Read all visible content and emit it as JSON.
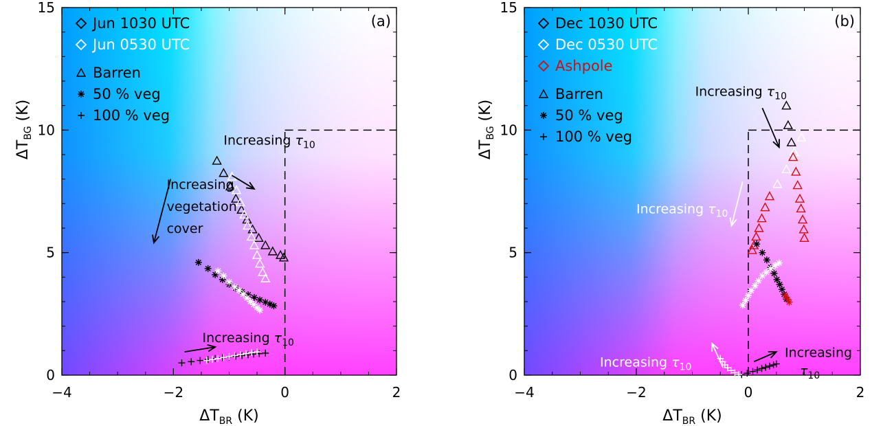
{
  "chart_data": [
    {
      "type": "scatter",
      "panel_label": "(a)",
      "xlabel": {
        "main": "ΔT",
        "sub": "BR",
        "unit": " (K)"
      },
      "ylabel": {
        "main": "ΔT",
        "sub": "BG",
        "unit": " (K)"
      },
      "xlim": [
        -4,
        2
      ],
      "ylim": [
        0,
        15
      ],
      "xticks": [
        "−4",
        "−2",
        "0",
        "2"
      ],
      "yticks": [
        "0",
        "5",
        "10",
        "15"
      ],
      "threshold": {
        "x": 0,
        "y": 10
      },
      "legend": {
        "placement": "top-left",
        "entries": [
          {
            "marker": "diamond",
            "color": "#000000",
            "label": "Jun 1030 UTC"
          },
          {
            "marker": "diamond",
            "color": "#ffffff",
            "label": "Jun 0530 UTC"
          },
          {
            "marker": "gap"
          },
          {
            "marker": "triangle",
            "color": "#000000",
            "label": "Barren"
          },
          {
            "marker": "asterisk",
            "color": "#000000",
            "label": "50 % veg"
          },
          {
            "marker": "plus",
            "color": "#000000",
            "label": "100 % veg"
          }
        ]
      },
      "annotations": [
        {
          "text": "Increasing ",
          "tau": "τ",
          "sub": "10",
          "x": -1.1,
          "y": 9.4,
          "color": "#000000",
          "arrow": [
            -0.95,
            8.15,
            -0.55,
            7.6
          ]
        },
        {
          "text": "Increasing",
          "x": -2.12,
          "y": 7.6,
          "color": "#000000"
        },
        {
          "text": "vegetation",
          "x": -2.12,
          "y": 6.7,
          "color": "#000000"
        },
        {
          "text": "cover",
          "x": -2.12,
          "y": 5.8,
          "color": "#000000",
          "arrow": [
            -2.05,
            8.0,
            -2.35,
            5.4
          ]
        },
        {
          "text": "Increasing ",
          "tau": "τ",
          "sub": "10",
          "x": -1.48,
          "y": 1.35,
          "color": "#000000",
          "arrow": [
            -1.8,
            0.95,
            -1.25,
            1.15
          ]
        }
      ],
      "series": [
        {
          "name": "Barren",
          "time": "Jun 1030 UTC",
          "marker": "triangle",
          "color": "#000000",
          "x": [
            -1.22,
            -1.1,
            -0.98,
            -0.88,
            -0.78,
            -0.68,
            -0.58,
            -0.47,
            -0.35,
            -0.22,
            -0.08,
            -0.02
          ],
          "y": [
            8.75,
            8.25,
            7.7,
            7.2,
            6.75,
            6.35,
            5.95,
            5.6,
            5.3,
            5.05,
            4.9,
            4.8
          ]
        },
        {
          "name": "Barren",
          "time": "Jun 0530 UTC",
          "marker": "triangle",
          "color": "#ffffff",
          "x": [
            -0.95,
            -0.87,
            -0.8,
            -0.73,
            -0.67,
            -0.6,
            -0.55,
            -0.5,
            -0.45,
            -0.4,
            -0.35
          ],
          "y": [
            8.1,
            7.55,
            7.05,
            6.55,
            6.1,
            5.65,
            5.3,
            4.9,
            4.55,
            4.2,
            3.95
          ]
        },
        {
          "name": "50 % veg",
          "time": "Jun 1030 UTC",
          "marker": "asterisk",
          "color": "#000000",
          "x": [
            -1.55,
            -1.38,
            -1.25,
            -1.12,
            -1.0,
            -0.88,
            -0.77,
            -0.66,
            -0.55,
            -0.45,
            -0.35,
            -0.27,
            -0.2
          ],
          "y": [
            4.6,
            4.35,
            4.1,
            3.9,
            3.7,
            3.55,
            3.4,
            3.28,
            3.17,
            3.07,
            2.98,
            2.9,
            2.83
          ]
        },
        {
          "name": "50 % veg",
          "time": "Jun 0530 UTC",
          "marker": "asterisk",
          "color": "#ffffff",
          "x": [
            -1.2,
            -1.1,
            -1.0,
            -0.9,
            -0.82,
            -0.75,
            -0.68,
            -0.62,
            -0.56,
            -0.5,
            -0.45
          ],
          "y": [
            4.25,
            4.05,
            3.8,
            3.6,
            3.45,
            3.3,
            3.15,
            3.0,
            2.88,
            2.75,
            2.65
          ]
        },
        {
          "name": "100 % veg",
          "time": "Jun 1030 UTC",
          "marker": "plus",
          "color": "#000000",
          "x": [
            -1.85,
            -1.68,
            -1.52,
            -1.38,
            -1.25,
            -1.12,
            -1.0,
            -0.88,
            -0.77,
            -0.66,
            -0.56,
            -0.46,
            -0.35
          ],
          "y": [
            0.5,
            0.55,
            0.6,
            0.64,
            0.68,
            0.71,
            0.74,
            0.77,
            0.8,
            0.83,
            0.86,
            0.88,
            0.9
          ]
        },
        {
          "name": "100 % veg",
          "time": "Jun 0530 UTC",
          "marker": "plus",
          "color": "#ffffff",
          "x": [
            -1.4,
            -1.3,
            -1.2,
            -1.1,
            -1.0,
            -0.9,
            -0.8,
            -0.7,
            -0.6,
            -0.5
          ],
          "y": [
            0.6,
            0.64,
            0.68,
            0.72,
            0.76,
            0.8,
            0.84,
            0.88,
            0.92,
            0.95
          ]
        }
      ]
    },
    {
      "type": "scatter",
      "panel_label": "(b)",
      "xlabel": {
        "main": "ΔT",
        "sub": "BR",
        "unit": " (K)"
      },
      "ylabel": {
        "main": "ΔT",
        "sub": "BG",
        "unit": " (K)"
      },
      "xlim": [
        -4,
        2
      ],
      "ylim": [
        0,
        15
      ],
      "xticks": [
        "−4",
        "−2",
        "0",
        "2"
      ],
      "yticks": [
        "0",
        "5",
        "10",
        "15"
      ],
      "threshold": {
        "x": 0,
        "y": 10
      },
      "legend": {
        "placement": "top-left",
        "entries": [
          {
            "marker": "diamond",
            "color": "#000000",
            "label": "Dec 1030 UTC"
          },
          {
            "marker": "diamond",
            "color": "#ffffff",
            "label": "Dec 0530 UTC"
          },
          {
            "marker": "diamond",
            "color": "#cc1010",
            "label": "Ashpole"
          },
          {
            "marker": "gap"
          },
          {
            "marker": "triangle",
            "color": "#000000",
            "label": "Barren"
          },
          {
            "marker": "asterisk",
            "color": "#000000",
            "label": "50 % veg"
          },
          {
            "marker": "plus",
            "color": "#000000",
            "label": "100 % veg"
          }
        ]
      },
      "annotations": [
        {
          "text": "Increasing ",
          "tau": "τ",
          "sub": "10",
          "x": -0.95,
          "y": 11.4,
          "color": "#000000",
          "arrow": [
            0.25,
            10.9,
            0.55,
            9.3
          ]
        },
        {
          "text": "Increasing ",
          "tau": "τ",
          "sub": "10",
          "x": -2.0,
          "y": 6.6,
          "color": "#ffffff",
          "arrow": [
            -0.1,
            7.9,
            -0.3,
            6.1
          ]
        },
        {
          "text": "Increasing ",
          "tau": "τ",
          "sub": "10",
          "x": -2.65,
          "y": 0.35,
          "color": "#ffffff",
          "arrow": [
            -0.45,
            0.3,
            -0.65,
            1.3
          ]
        },
        {
          "text": "Increasing",
          "x": 0.65,
          "y": 0.75,
          "color": "#000000",
          "arrow": [
            0.1,
            0.55,
            0.5,
            0.95
          ]
        },
        {
          "text": "",
          "tau": "τ",
          "sub": "10",
          "x": 0.92,
          "y": 0.0,
          "color": "#000000"
        }
      ],
      "series": [
        {
          "name": "Barren",
          "time": "Dec 1030 UTC",
          "marker": "triangle",
          "color": "#000000",
          "x": [
            0.68,
            0.71,
            0.77
          ],
          "y": [
            11.0,
            10.2,
            9.5
          ]
        },
        {
          "name": "Barren",
          "time": "Dec 0530 UTC",
          "marker": "triangle",
          "color": "#ffffff",
          "x": [
            0.95,
            0.82,
            0.68,
            0.52
          ],
          "y": [
            9.7,
            9.1,
            8.4,
            7.8
          ]
        },
        {
          "name": "Barren",
          "time": "Ashpole",
          "marker": "triangle",
          "color": "#cc1010",
          "x": [
            0.8,
            0.85,
            0.88,
            0.92,
            0.94,
            0.97,
            0.99,
            1.0,
            0.38,
            0.3,
            0.24,
            0.19,
            0.14,
            0.1,
            0.07
          ],
          "y": [
            8.9,
            8.3,
            7.75,
            7.2,
            6.8,
            6.35,
            5.95,
            5.6,
            7.3,
            6.85,
            6.4,
            6.0,
            5.65,
            5.3,
            5.1
          ]
        },
        {
          "name": "50 % veg",
          "time": "Dec 1030 UTC",
          "marker": "asterisk",
          "color": "#000000",
          "x": [
            0.15,
            0.25,
            0.33,
            0.4,
            0.46,
            0.51,
            0.56,
            0.6,
            0.64,
            0.68
          ],
          "y": [
            5.35,
            5.0,
            4.7,
            4.4,
            4.15,
            3.9,
            3.7,
            3.5,
            3.3,
            3.1
          ]
        },
        {
          "name": "50 % veg",
          "time": "Dec 0530 UTC",
          "marker": "asterisk",
          "color": "#ffffff",
          "x": [
            -0.1,
            -0.05,
            0.0,
            0.05,
            0.12,
            0.18,
            0.25,
            0.32,
            0.4,
            0.48,
            0.55
          ],
          "y": [
            2.85,
            3.05,
            3.25,
            3.45,
            3.65,
            3.85,
            4.05,
            4.2,
            4.35,
            4.48,
            4.58
          ]
        },
        {
          "name": "50 % veg",
          "time": "Ashpole",
          "marker": "asterisk",
          "color": "#cc1010",
          "x": [
            0.66,
            0.7,
            0.73
          ],
          "y": [
            3.25,
            3.1,
            2.98
          ]
        },
        {
          "name": "100 % veg",
          "time": "Dec 1030 UTC",
          "marker": "plus",
          "color": "#000000",
          "x": [
            -0.12,
            -0.02,
            0.08,
            0.16,
            0.24,
            0.31,
            0.38,
            0.45,
            0.5
          ],
          "y": [
            0.02,
            0.08,
            0.15,
            0.21,
            0.27,
            0.32,
            0.37,
            0.42,
            0.46
          ]
        },
        {
          "name": "100 % veg",
          "time": "Dec 0530 UTC",
          "marker": "plus",
          "color": "#ffffff",
          "x": [
            -0.5,
            -0.46,
            -0.42,
            -0.37,
            -0.31,
            -0.24,
            -0.17
          ],
          "y": [
            0.68,
            0.55,
            0.42,
            0.3,
            0.19,
            0.1,
            0.03
          ]
        }
      ]
    }
  ]
}
